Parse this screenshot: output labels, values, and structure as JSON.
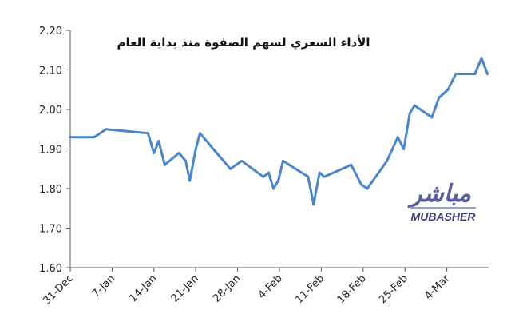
{
  "chart_data": {
    "type": "line",
    "title": "الأداء السعري لسهم الصفوة منذ بداية العام",
    "xlabel": "",
    "ylabel": "",
    "ylim": [
      1.6,
      2.2
    ],
    "yticks": [
      "1.60",
      "1.70",
      "1.80",
      "1.90",
      "2.00",
      "2.10",
      "2.20"
    ],
    "xticks": [
      {
        "label": "31-Dec",
        "day": 0
      },
      {
        "label": "7-Jan",
        "day": 7
      },
      {
        "label": "14-Jan",
        "day": 14
      },
      {
        "label": "21-Jan",
        "day": 21
      },
      {
        "label": "28-Jan",
        "day": 28
      },
      {
        "label": "4-Feb",
        "day": 35
      },
      {
        "label": "11-Feb",
        "day": 42
      },
      {
        "label": "18-Feb",
        "day": 49
      },
      {
        "label": "25-Feb",
        "day": 56
      },
      {
        "label": "4-Mar",
        "day": 63
      }
    ],
    "xlim_days": [
      0,
      70
    ],
    "grid": false,
    "line_color": "#4a86c8",
    "series": [
      {
        "points": [
          [
            0,
            1.93
          ],
          [
            4,
            1.93
          ],
          [
            6,
            1.95
          ],
          [
            13,
            1.94
          ],
          [
            14,
            1.89
          ],
          [
            14.8,
            1.92
          ],
          [
            15.8,
            1.86
          ],
          [
            18.2,
            1.89
          ],
          [
            19.3,
            1.87
          ],
          [
            20,
            1.82
          ],
          [
            21,
            1.9
          ],
          [
            21.7,
            1.94
          ],
          [
            24.5,
            1.89
          ],
          [
            26.8,
            1.85
          ],
          [
            28.7,
            1.87
          ],
          [
            32.3,
            1.83
          ],
          [
            33.2,
            1.84
          ],
          [
            34,
            1.8
          ],
          [
            34.8,
            1.82
          ],
          [
            35.6,
            1.87
          ],
          [
            39.8,
            1.83
          ],
          [
            40.7,
            1.76
          ],
          [
            41.7,
            1.84
          ],
          [
            42.5,
            1.83
          ],
          [
            47,
            1.86
          ],
          [
            48.7,
            1.81
          ],
          [
            49.7,
            1.8
          ],
          [
            53,
            1.87
          ],
          [
            54.8,
            1.93
          ],
          [
            55.8,
            1.9
          ],
          [
            56.8,
            1.99
          ],
          [
            57.6,
            2.01
          ],
          [
            60.5,
            1.98
          ],
          [
            61.7,
            2.03
          ],
          [
            63.2,
            2.05
          ],
          [
            64.5,
            2.09
          ],
          [
            67.7,
            2.09
          ],
          [
            68.8,
            2.13
          ],
          [
            69.8,
            2.09
          ]
        ]
      }
    ]
  },
  "watermark": {
    "arabic": "مباشر",
    "latin": "MUBASHER"
  }
}
